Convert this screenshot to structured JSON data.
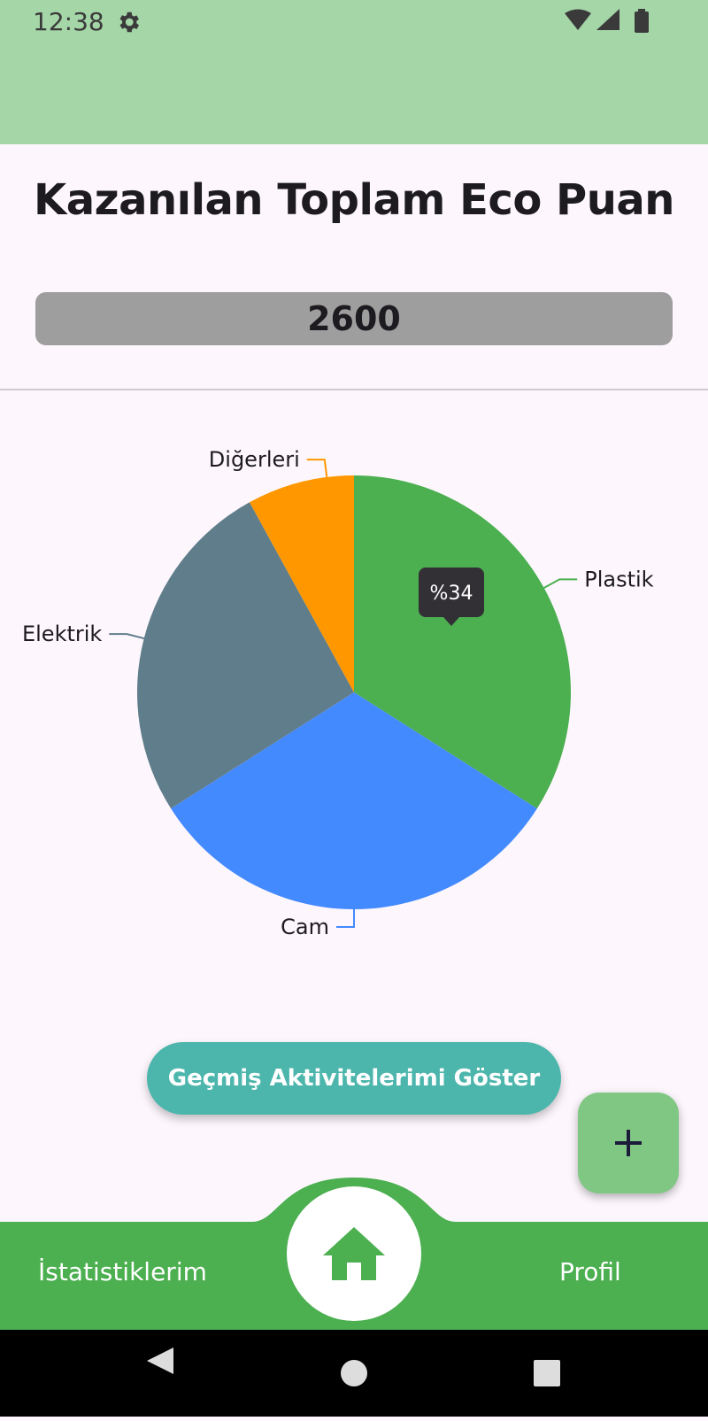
{
  "status_bar": {
    "time": "12:38"
  },
  "header": {
    "title": "Kazanılan Toplam Eco Puan",
    "points": "2600"
  },
  "chart_data": {
    "type": "pie",
    "slices": [
      {
        "label": "Plastik",
        "value": 34,
        "color": "#4caf50"
      },
      {
        "label": "Cam",
        "value": 32,
        "color": "#448aff"
      },
      {
        "label": "Elektrik",
        "value": 26,
        "color": "#607d8b"
      },
      {
        "label": "Diğerleri",
        "value": 8,
        "color": "#ff9800"
      }
    ],
    "tooltip": "%34"
  },
  "actions": {
    "history_button": "Geçmiş Aktivitelerimi Göster",
    "fab_icon": "plus-icon"
  },
  "bottom_nav": {
    "stats_label": "İstatistiklerim",
    "profile_label": "Profil",
    "home_icon": "home-icon",
    "color": "#4caf50"
  }
}
